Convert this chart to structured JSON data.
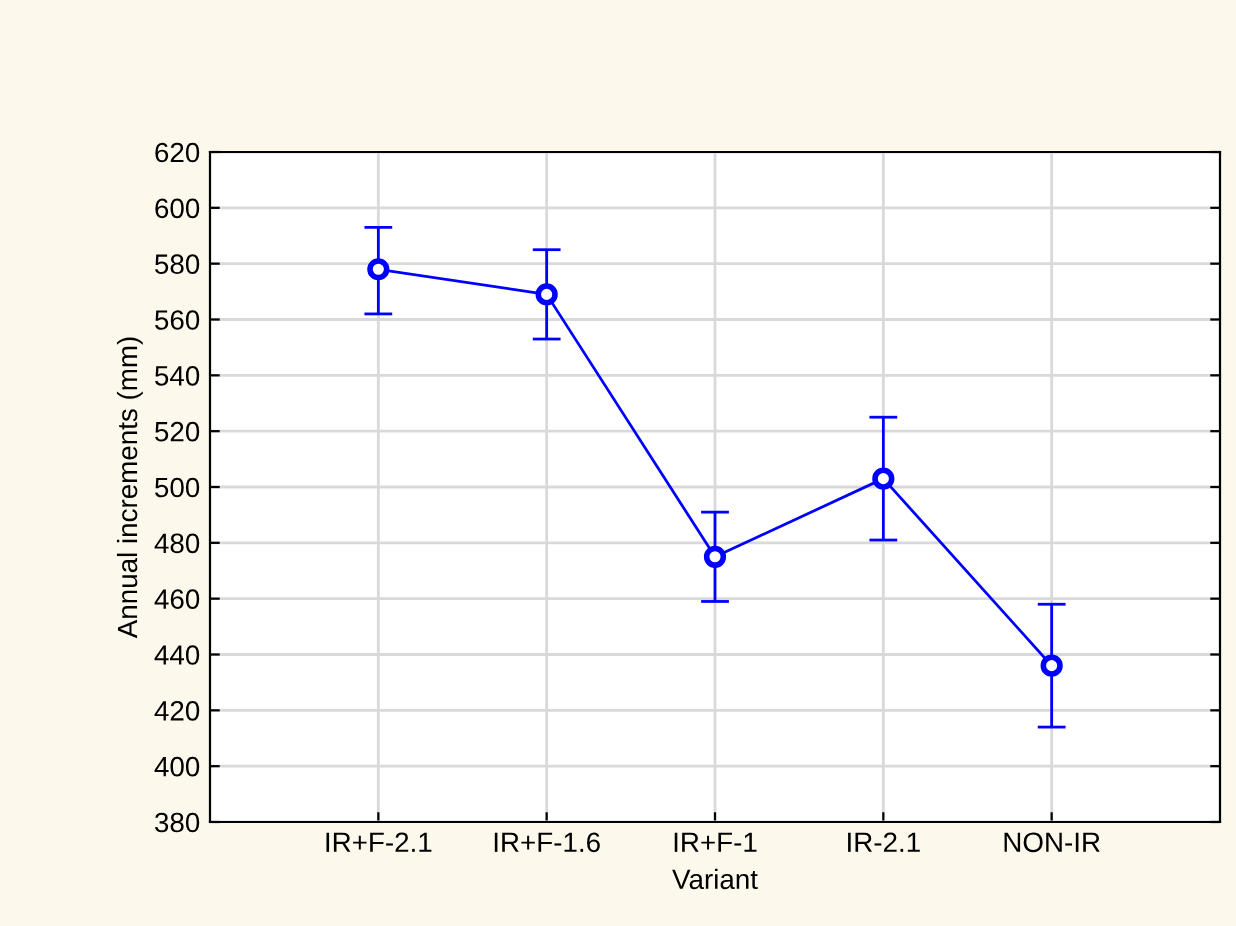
{
  "chart_data": {
    "type": "line",
    "xlabel": "Variant",
    "ylabel": "Annual increments (mm)",
    "categories": [
      "IR+F-2.1",
      "IR+F-1.6",
      "IR+F-1",
      "IR-2.1",
      "NON-IR"
    ],
    "series": [
      {
        "color": "#0000ff",
        "values": [
          578,
          569,
          475,
          503,
          436
        ],
        "errors": [
          [
            562,
            593
          ],
          [
            553,
            585
          ],
          [
            459,
            491
          ],
          [
            481,
            525
          ],
          [
            414,
            458
          ]
        ]
      }
    ],
    "ylim": [
      380,
      620
    ],
    "yticks": [
      380,
      400,
      420,
      440,
      460,
      480,
      500,
      520,
      540,
      560,
      580,
      600,
      620
    ],
    "grid": true,
    "marker": "circle",
    "line_style": "solid"
  }
}
